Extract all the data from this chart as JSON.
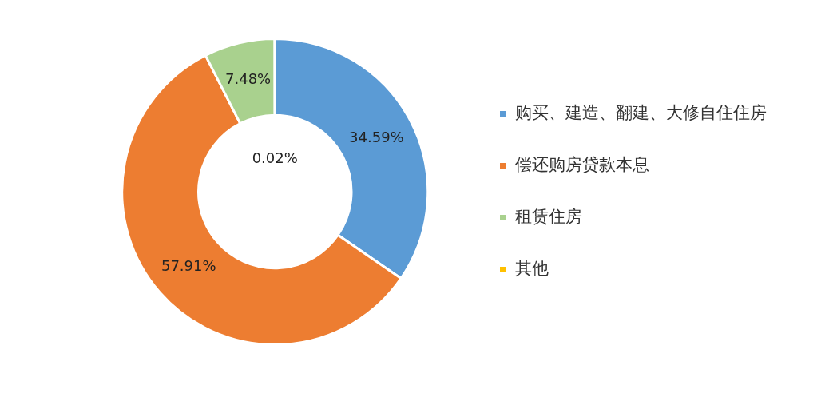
{
  "chart_data": {
    "type": "donut",
    "categories": [
      "购买、建造、翻建、大修自住住房",
      "偿还购房贷款本息",
      "租赁住房",
      "其他"
    ],
    "values": [
      34.59,
      57.91,
      7.48,
      0.02
    ],
    "colors": [
      "#5b9bd5",
      "#ed7d31",
      "#a9d18e",
      "#ffc000"
    ],
    "value_labels": [
      "34.59%",
      "57.91%",
      "7.48%",
      "0.02%"
    ],
    "legend": "right"
  }
}
